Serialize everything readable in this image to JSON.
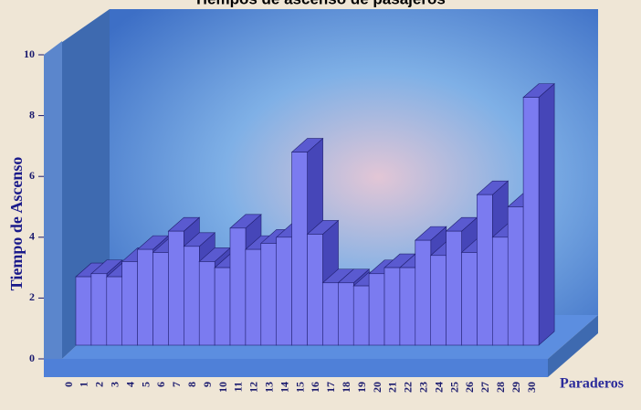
{
  "chart_data": {
    "type": "bar3d",
    "title": "Tiempos de ascenso de pasajeros",
    "x_label": "Paraderos",
    "y_label": "Tiempo de Ascenso",
    "categories": [
      "0",
      "1",
      "2",
      "3",
      "4",
      "5",
      "6",
      "7",
      "8",
      "9",
      "10",
      "11",
      "12",
      "13",
      "14",
      "15",
      "16",
      "17",
      "18",
      "19",
      "20",
      "21",
      "22",
      "23",
      "24",
      "25",
      "26",
      "27",
      "28",
      "29",
      "30"
    ],
    "values": [
      null,
      2.7,
      2.8,
      2.7,
      3.2,
      3.6,
      3.5,
      4.2,
      3.7,
      3.2,
      3.0,
      4.3,
      3.6,
      3.8,
      4.0,
      6.8,
      4.1,
      2.5,
      2.5,
      2.4,
      2.8,
      3.0,
      3.0,
      3.9,
      3.4,
      4.2,
      3.5,
      5.4,
      4.0,
      5.0,
      8.6
    ],
    "color": "#7b7bf0",
    "ylim": [
      0,
      10
    ],
    "yticks": [
      0,
      2,
      4,
      6,
      8,
      10
    ]
  }
}
